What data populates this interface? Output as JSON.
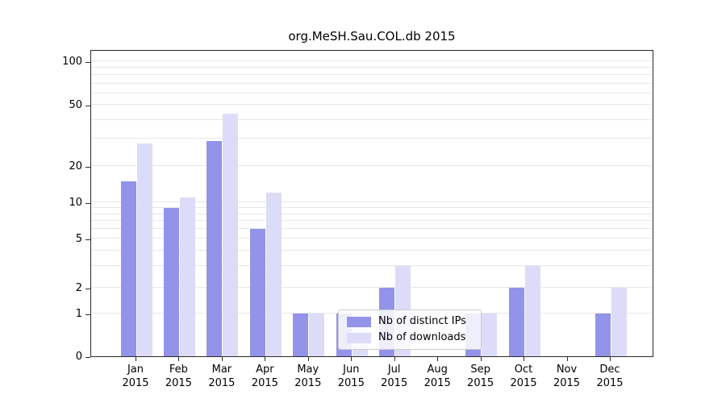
{
  "chart_data": {
    "type": "bar",
    "title": "org.MeSH.Sau.COL.db 2015",
    "categories": [
      "Jan 2015",
      "Feb 2015",
      "Mar 2015",
      "Apr 2015",
      "May 2015",
      "Jun 2015",
      "Jul 2015",
      "Aug 2015",
      "Sep 2015",
      "Oct 2015",
      "Nov 2015",
      "Dec 2015"
    ],
    "series": [
      {
        "name": "Nb of distinct IPs",
        "color": "#9393ea",
        "values": [
          15,
          9,
          29,
          6,
          1,
          1,
          2,
          0,
          1,
          2,
          0,
          1
        ]
      },
      {
        "name": "Nb of downloads",
        "color": "#dcdcf8",
        "values": [
          28,
          11,
          44,
          12,
          1,
          1,
          3,
          0,
          1,
          3,
          0,
          2
        ]
      }
    ],
    "yscale": "log",
    "ylabel": "",
    "xlabel": "",
    "yticks": [
      0,
      1,
      2,
      5,
      10,
      20,
      50,
      100
    ],
    "gridlines": [
      1,
      2,
      3,
      4,
      5,
      6,
      7,
      8,
      9,
      10,
      20,
      30,
      40,
      50,
      60,
      70,
      80,
      90,
      100
    ],
    "grid": "horizontal",
    "legend_position": "bottom-center"
  },
  "legend": {
    "items": [
      {
        "label": "Nb of distinct IPs"
      },
      {
        "label": "Nb of downloads"
      }
    ]
  }
}
